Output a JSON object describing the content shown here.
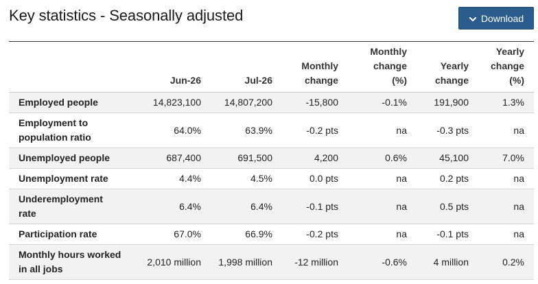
{
  "page": {
    "title": "Key statistics - Seasonally adjusted",
    "download_label": "Download",
    "download_icon": "chevron-down-icon",
    "accent_color": "#2a5c8e"
  },
  "table": {
    "headers": [
      "",
      "Jun-26",
      "Jul-26",
      "Monthly\nchange",
      "Monthly\nchange\n(%)",
      "Yearly\nchange",
      "Yearly\nchange\n(%)"
    ],
    "rows": [
      {
        "label": "Employed people",
        "cells": [
          "14,823,100",
          "14,807,200",
          "-15,800",
          "-0.1%",
          "191,900",
          "1.3%"
        ]
      },
      {
        "label": "Employment to population ratio",
        "cells": [
          "64.0%",
          "63.9%",
          "-0.2 pts",
          "na",
          "-0.3 pts",
          "na"
        ]
      },
      {
        "label": "Unemployed people",
        "cells": [
          "687,400",
          "691,500",
          "4,200",
          "0.6%",
          "45,100",
          "7.0%"
        ]
      },
      {
        "label": "Unemployment rate",
        "cells": [
          "4.4%",
          "4.5%",
          "0.0 pts",
          "na",
          "0.2 pts",
          "na"
        ]
      },
      {
        "label": "Underemployment rate",
        "cells": [
          "6.4%",
          "6.4%",
          "-0.1 pts",
          "na",
          "0.5 pts",
          "na"
        ]
      },
      {
        "label": "Participation rate",
        "cells": [
          "67.0%",
          "66.9%",
          "-0.2 pts",
          "na",
          "-0.1 pts",
          "na"
        ]
      },
      {
        "label": "Monthly hours worked in all jobs",
        "cells": [
          "2,010 million",
          "1,998 million",
          "-12 million",
          "-0.6%",
          "4 million",
          "0.2%"
        ]
      }
    ]
  }
}
